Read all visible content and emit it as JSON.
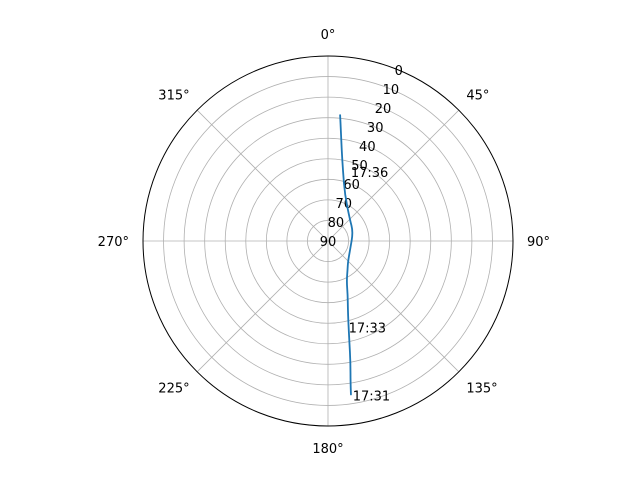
{
  "chart_data": {
    "type": "line",
    "projection": "polar",
    "theta_direction": "clockwise",
    "theta_zero": "top",
    "theta_tick_labels": [
      "0°",
      "45°",
      "90°",
      "135°",
      "180°",
      "225°",
      "270°",
      "315°"
    ],
    "theta_tick_values": [
      0,
      45,
      90,
      135,
      180,
      225,
      270,
      315
    ],
    "r_axis_inverted": true,
    "r_range": [
      0,
      90
    ],
    "r_tick_values": [
      0,
      10,
      20,
      30,
      40,
      50,
      60,
      70,
      80,
      90
    ],
    "r_tick_labels": [
      "0",
      "10",
      "20",
      "30",
      "40",
      "50",
      "60",
      "70",
      "80",
      "90"
    ],
    "grid": true,
    "series": [
      {
        "color": "#1f77b4",
        "points": [
          {
            "az": 171.5,
            "el": 14.5
          },
          {
            "az": 171.0,
            "el": 20.0
          },
          {
            "az": 169.5,
            "el": 30.0
          },
          {
            "az": 168.0,
            "el": 40.0
          },
          {
            "az": 166.0,
            "el": 49.0
          },
          {
            "az": 163.5,
            "el": 56.0
          },
          {
            "az": 160.0,
            "el": 62.0
          },
          {
            "az": 155.0,
            "el": 68.5
          },
          {
            "az": 146.0,
            "el": 73.0
          },
          {
            "az": 136.0,
            "el": 76.0
          },
          {
            "az": 110.0,
            "el": 78.5
          },
          {
            "az": 70.0,
            "el": 77.0
          },
          {
            "az": 45.0,
            "el": 75.0
          },
          {
            "az": 20.0,
            "el": 66.0
          },
          {
            "az": 12.0,
            "el": 55.0
          },
          {
            "az": 8.5,
            "el": 45.0
          },
          {
            "az": 6.5,
            "el": 35.0
          },
          {
            "az": 5.5,
            "el": 28.5
          }
        ]
      }
    ],
    "annotations": [
      {
        "text": "17:31",
        "az": 172.0,
        "el": 14.0
      },
      {
        "text": "17:33",
        "az": 168.5,
        "el": 47.0
      },
      {
        "text": "17:36",
        "az": 16.0,
        "el": 55.0
      }
    ]
  }
}
